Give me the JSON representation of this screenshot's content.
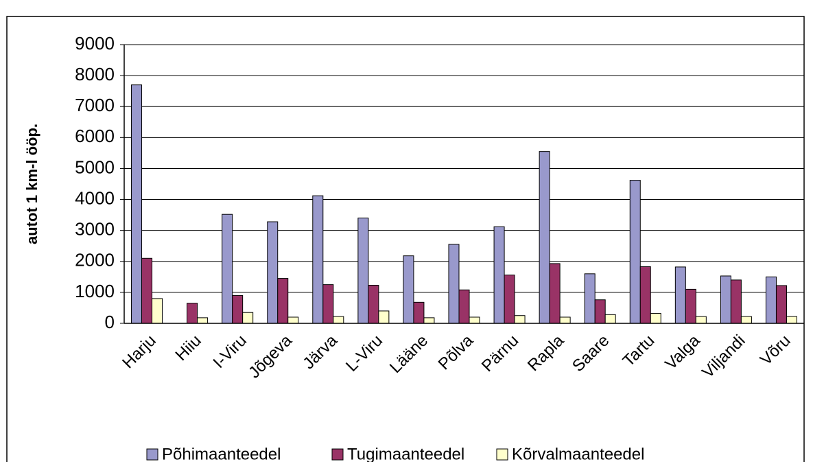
{
  "chart_data": {
    "type": "bar",
    "y_label": "autot 1 km-l ööp.",
    "categories": [
      "Harju",
      "Hiiu",
      "I-Viru",
      "Jõgeva",
      "Järva",
      "L-Viru",
      "Lääne",
      "Põlva",
      "Pärnu",
      "Rapla",
      "Saare",
      "Tartu",
      "Valga",
      "Viljandi",
      "Võru"
    ],
    "series": [
      {
        "name": "Põhimaanteedel",
        "color": "#9999cc",
        "values": [
          7700,
          0,
          3520,
          3280,
          4120,
          3400,
          2180,
          2550,
          3120,
          5550,
          1600,
          4620,
          1820,
          1530,
          1500
        ]
      },
      {
        "name": "Tugimaanteedel",
        "color": "#993366",
        "values": [
          2100,
          650,
          900,
          1450,
          1250,
          1230,
          680,
          1080,
          1560,
          1930,
          760,
          1830,
          1100,
          1400,
          1220
        ]
      },
      {
        "name": "Kõrvalmaanteedel",
        "color": "#ffffcc",
        "values": [
          800,
          180,
          350,
          200,
          220,
          400,
          180,
          200,
          250,
          200,
          280,
          320,
          220,
          220,
          220
        ]
      }
    ],
    "ylim": [
      0,
      9000
    ],
    "yticks": [
      0,
      1000,
      2000,
      3000,
      4000,
      5000,
      6000,
      7000,
      8000,
      9000
    ],
    "grid": true,
    "legend": "bottom"
  }
}
